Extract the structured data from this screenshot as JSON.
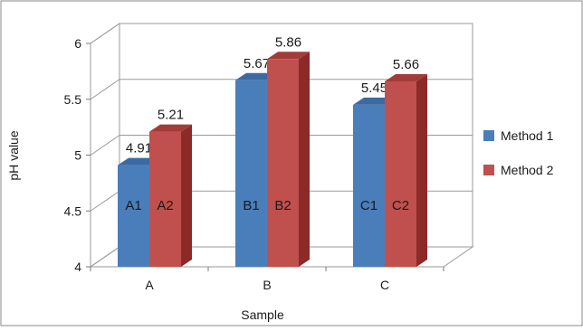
{
  "chart_data": {
    "type": "bar",
    "style": "3d-clustered-column",
    "categories": [
      "A",
      "B",
      "C"
    ],
    "series": [
      {
        "name": "Method 1",
        "values": [
          4.91,
          5.67,
          5.45
        ],
        "bar_labels": [
          "A1",
          "B1",
          "C1"
        ],
        "color": "#4a7ebb",
        "side_color": "#2c5284",
        "top_color": "#3b6aa3"
      },
      {
        "name": "Method 2",
        "values": [
          5.21,
          5.86,
          5.66
        ],
        "bar_labels": [
          "A2",
          "B2",
          "C2"
        ],
        "color": "#c0504d",
        "side_color": "#8c2a28",
        "top_color": "#a33c39"
      }
    ],
    "value_labels": [
      [
        "4.91",
        "5.67",
        "5.45"
      ],
      [
        "5.21",
        "5.86",
        "5.66"
      ]
    ],
    "xlabel": "Sample",
    "ylabel": "pH value",
    "ylim": [
      4,
      6
    ],
    "yticks": [
      "4",
      "4.5",
      "5",
      "5.5",
      "6"
    ],
    "grid": true,
    "legend": "right"
  }
}
